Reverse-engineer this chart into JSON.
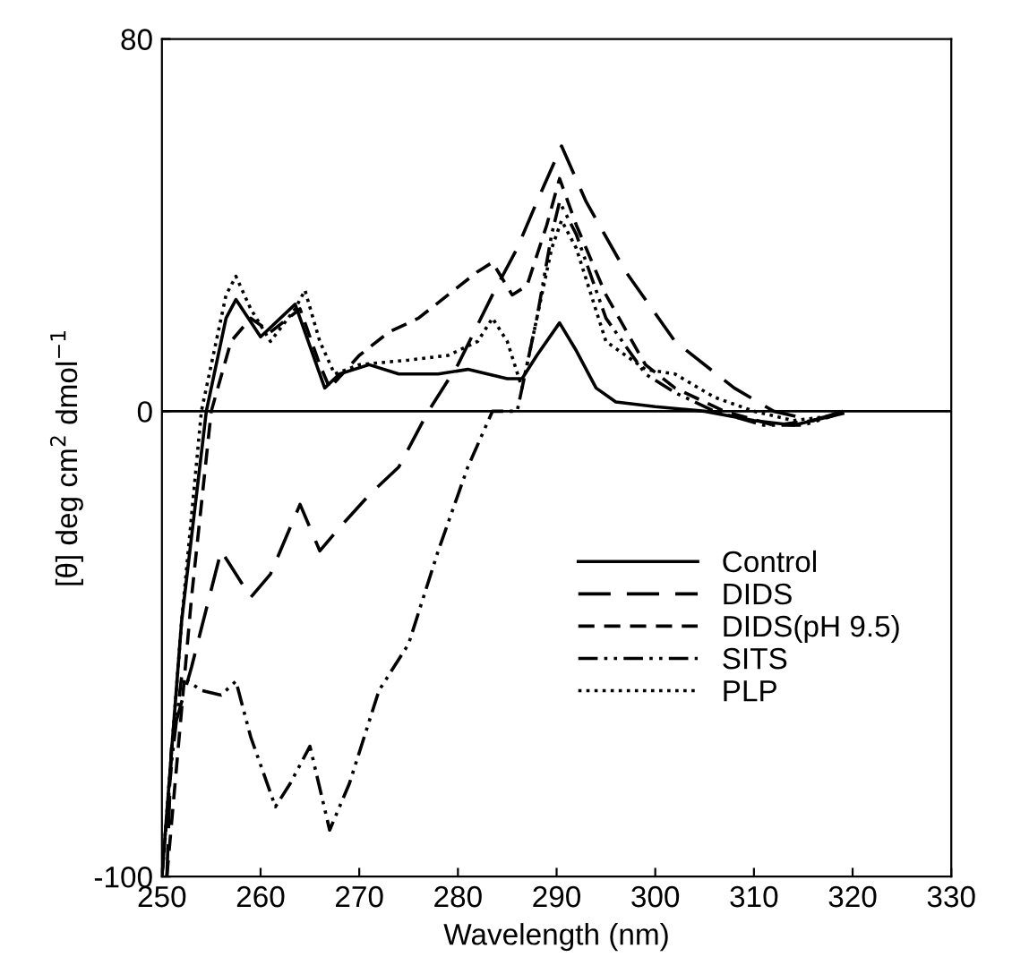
{
  "chart_data": {
    "type": "line",
    "xlabel": "Wavelength (nm)",
    "ylabel": "[θ] deg cm$^{2}$ dmol$^{−1}$",
    "xlim": [
      250,
      330
    ],
    "xticks": [
      250,
      260,
      270,
      280,
      290,
      300,
      310,
      320,
      330
    ],
    "ylim": [
      -100,
      80
    ],
    "yticks": [
      -100,
      0,
      80
    ],
    "grid": false,
    "legend": "bottom right",
    "ref_lines": [
      {
        "axis": "y",
        "value": 0,
        "color": "#000000",
        "line_style": "solid"
      }
    ],
    "series": [
      {
        "name": "Control",
        "color": "#000000",
        "line_style": "solid",
        "x": [
          250,
          252,
          254.5,
          256.5,
          257.5,
          260,
          263.5,
          266.5,
          268,
          271,
          274,
          278,
          281,
          285,
          286.5,
          288,
          290.3,
          292,
          294,
          296,
          300,
          305,
          310,
          314,
          318,
          319
        ],
        "values": [
          -100,
          -45,
          0,
          20,
          24,
          16,
          23,
          5,
          8,
          10,
          8,
          8,
          9,
          7,
          7,
          12,
          19,
          13,
          5,
          2,
          1,
          0,
          -2,
          -3,
          -1,
          -0.5
        ]
      },
      {
        "name": "DIDS",
        "color": "#000000",
        "line_style": "longdash",
        "x": [
          250.5,
          251,
          253,
          256,
          259,
          261,
          264,
          266,
          268,
          271,
          274,
          277,
          280,
          283.5,
          286,
          288,
          290.5,
          293,
          297,
          302,
          308,
          312,
          316,
          319
        ],
        "values": [
          -100,
          -70,
          -55,
          -30,
          -40,
          -35,
          -20,
          -30,
          -25,
          -18,
          -12,
          0,
          10,
          25,
          35,
          45,
          57,
          45,
          30,
          15,
          5,
          0,
          -2,
          0
        ]
      },
      {
        "name": "DIDS(pH 9.5)",
        "color": "#000000",
        "line_style": "dashed",
        "x": [
          250.5,
          253,
          255,
          257,
          259,
          261,
          264,
          266,
          267,
          270,
          273,
          276,
          279,
          282,
          283.5,
          285.5,
          287,
          289,
          290.3,
          292,
          295,
          299,
          302,
          307,
          312,
          316,
          319
        ],
        "values": [
          -100,
          -40,
          0,
          15,
          20,
          17,
          22,
          10,
          5,
          12,
          17,
          20,
          25,
          30,
          32,
          25,
          27,
          40,
          50,
          40,
          25,
          10,
          5,
          0,
          -3,
          -2,
          0
        ]
      },
      {
        "name": "SITS",
        "color": "#000000",
        "line_style": "dashdot",
        "x": [
          250,
          251,
          252,
          254,
          256,
          257.5,
          259,
          261.5,
          263,
          265,
          267,
          269,
          272,
          275,
          278,
          281,
          283.5,
          286,
          288,
          289.5,
          290.3,
          292,
          295,
          299,
          302,
          306,
          311,
          315,
          318,
          319
        ],
        "values": [
          -100,
          -75,
          -57,
          -60,
          -61,
          -58,
          -70,
          -85,
          -80,
          -72,
          -90,
          -80,
          -60,
          -50,
          -30,
          -12,
          0,
          0,
          20,
          38,
          45,
          38,
          20,
          8,
          4,
          0,
          -3,
          -3,
          -1,
          0
        ]
      },
      {
        "name": "PLP",
        "color": "#000000",
        "line_style": "dotted",
        "x": [
          250,
          252,
          254,
          256.5,
          257.5,
          259,
          261,
          263.5,
          264.5,
          266,
          267.5,
          270,
          275,
          279,
          282,
          283.5,
          285,
          286.5,
          288,
          289.5,
          290.5,
          292,
          295,
          299,
          302,
          306,
          310,
          314,
          318
        ],
        "values": [
          -100,
          -45,
          0,
          25,
          29,
          22,
          15,
          22,
          26,
          15,
          8,
          10,
          11,
          12,
          15,
          20,
          15,
          5,
          20,
          35,
          41,
          35,
          15,
          9,
          8,
          3,
          0,
          -2,
          -1
        ]
      }
    ]
  }
}
